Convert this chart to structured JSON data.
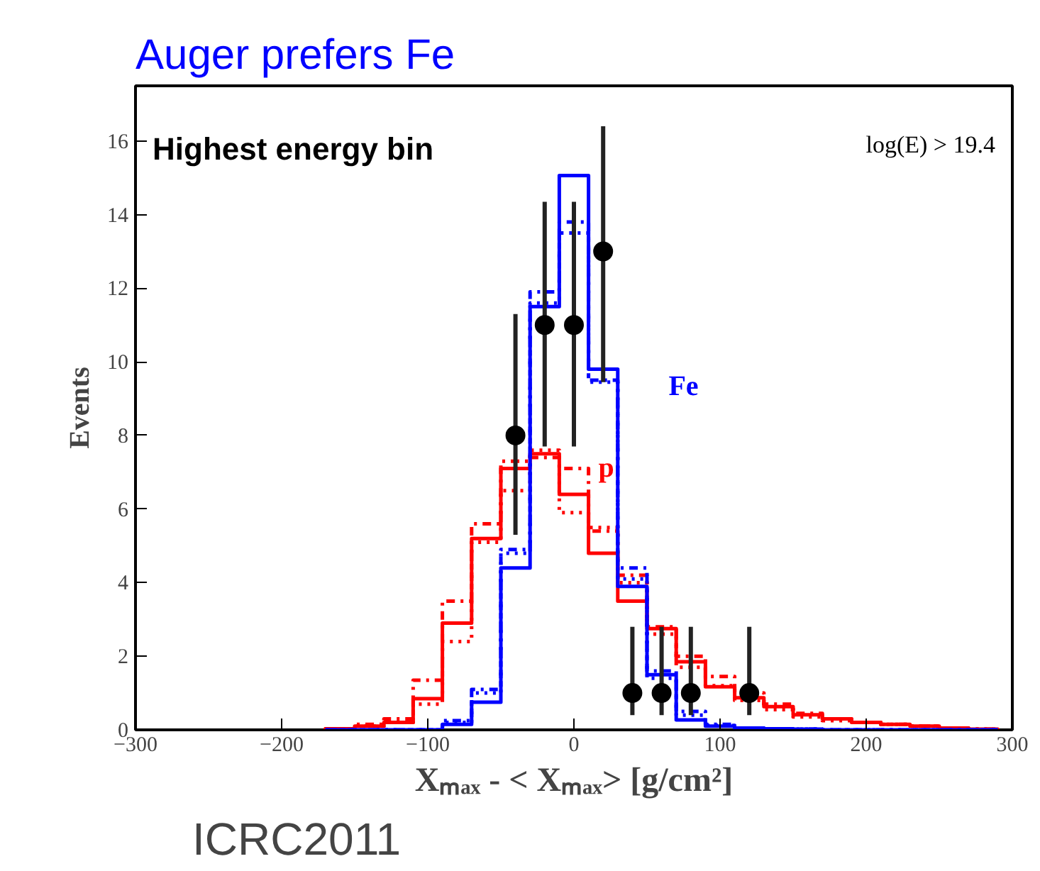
{
  "chart_data": {
    "type": "histogram",
    "title": "Auger prefers Fe",
    "xlabel": "Xₘₐₓ - < Xₘₐₓ> [g/cm²]",
    "ylabel": "Events",
    "bins": [
      -170,
      -150,
      -130,
      -110,
      -90,
      -70,
      -50,
      -30,
      -10,
      10,
      30,
      50,
      70,
      90,
      110,
      130,
      150,
      170,
      190,
      210,
      230,
      250,
      270,
      290
    ],
    "series": [
      {
        "color": "#ff0000",
        "line_style": "solid",
        "values": [
          0.03,
          0.1,
          0.2,
          0.85,
          2.9,
          5.2,
          7.1,
          7.5,
          6.4,
          4.8,
          3.5,
          2.75,
          1.85,
          1.17,
          0.87,
          0.63,
          0.41,
          0.3,
          0.2,
          0.15,
          0.1,
          0.05,
          0.02
        ]
      },
      {
        "color": "#fe0000",
        "line_style": "dashed",
        "values": [
          0.03,
          0.15,
          0.3,
          1.35,
          3.5,
          5.6,
          7.3,
          7.4,
          7.1,
          5.4,
          4.2,
          2.8,
          2.0,
          1.45,
          1.0,
          0.7,
          0.45,
          0.3,
          0.2,
          0.15,
          0.1,
          0.05,
          0.02
        ]
      },
      {
        "color": "#fd0000",
        "line_style": "dotted",
        "values": [
          0.02,
          0.1,
          0.2,
          0.7,
          2.4,
          5.1,
          6.5,
          7.6,
          5.9,
          5.5,
          4.0,
          2.6,
          1.7,
          1.2,
          0.8,
          0.55,
          0.35,
          0.25,
          0.2,
          0.15,
          0.1,
          0.05,
          0.02
        ]
      },
      {
        "color": "#0000ff",
        "line_style": "solid",
        "values": [
          0,
          0,
          0,
          0,
          0.15,
          0.75,
          4.4,
          11.5,
          15.06,
          9.8,
          3.9,
          1.5,
          0.27,
          0.1,
          0.05,
          0.03,
          0.02,
          0,
          0,
          0,
          0,
          0,
          0
        ]
      },
      {
        "color": "#0000fe",
        "line_style": "dashed",
        "values": [
          0,
          0,
          0,
          0,
          0.25,
          1.1,
          4.9,
          11.9,
          13.8,
          9.5,
          4.4,
          1.6,
          0.5,
          0.15,
          0.05,
          0.03,
          0.02,
          0,
          0,
          0,
          0,
          0,
          0
        ]
      },
      {
        "color": "#0000fd",
        "line_style": "dotted",
        "values": [
          0,
          0,
          0,
          0,
          0.2,
          1.0,
          4.8,
          11.6,
          13.5,
          9.45,
          4.1,
          1.4,
          0.4,
          0.12,
          0.05,
          0.03,
          0.02,
          0,
          0,
          0,
          0,
          0,
          0
        ]
      },
      {
        "type": "scatter",
        "color": "#000000",
        "marker": "circle",
        "x": [
          -40,
          -20,
          0,
          20,
          40,
          60,
          80,
          120
        ],
        "values": [
          8,
          11,
          11,
          13,
          1,
          1,
          1,
          1
        ],
        "errors": [
          [
            5.3,
            11.3
          ],
          [
            7.7,
            14.35
          ],
          [
            7.7,
            14.35
          ],
          [
            9.45,
            16.4
          ],
          [
            0.4,
            2.8
          ],
          [
            0.4,
            2.8
          ],
          [
            0.4,
            2.8
          ],
          [
            0.4,
            2.8
          ]
        ]
      }
    ],
    "xlim": [
      -300,
      300
    ],
    "xticks": [
      -300,
      -200,
      -100,
      0,
      100,
      200,
      300
    ],
    "ylim": [
      0,
      17.5
    ],
    "yticks": [
      0,
      2,
      4,
      6,
      8,
      10,
      12,
      14,
      16
    ],
    "grid": false,
    "annotations": [
      {
        "text": "Highest energy bin"
      },
      {
        "text": "log(E) > 19.4"
      },
      "Fe",
      "p",
      "ICRC2011"
    ]
  }
}
